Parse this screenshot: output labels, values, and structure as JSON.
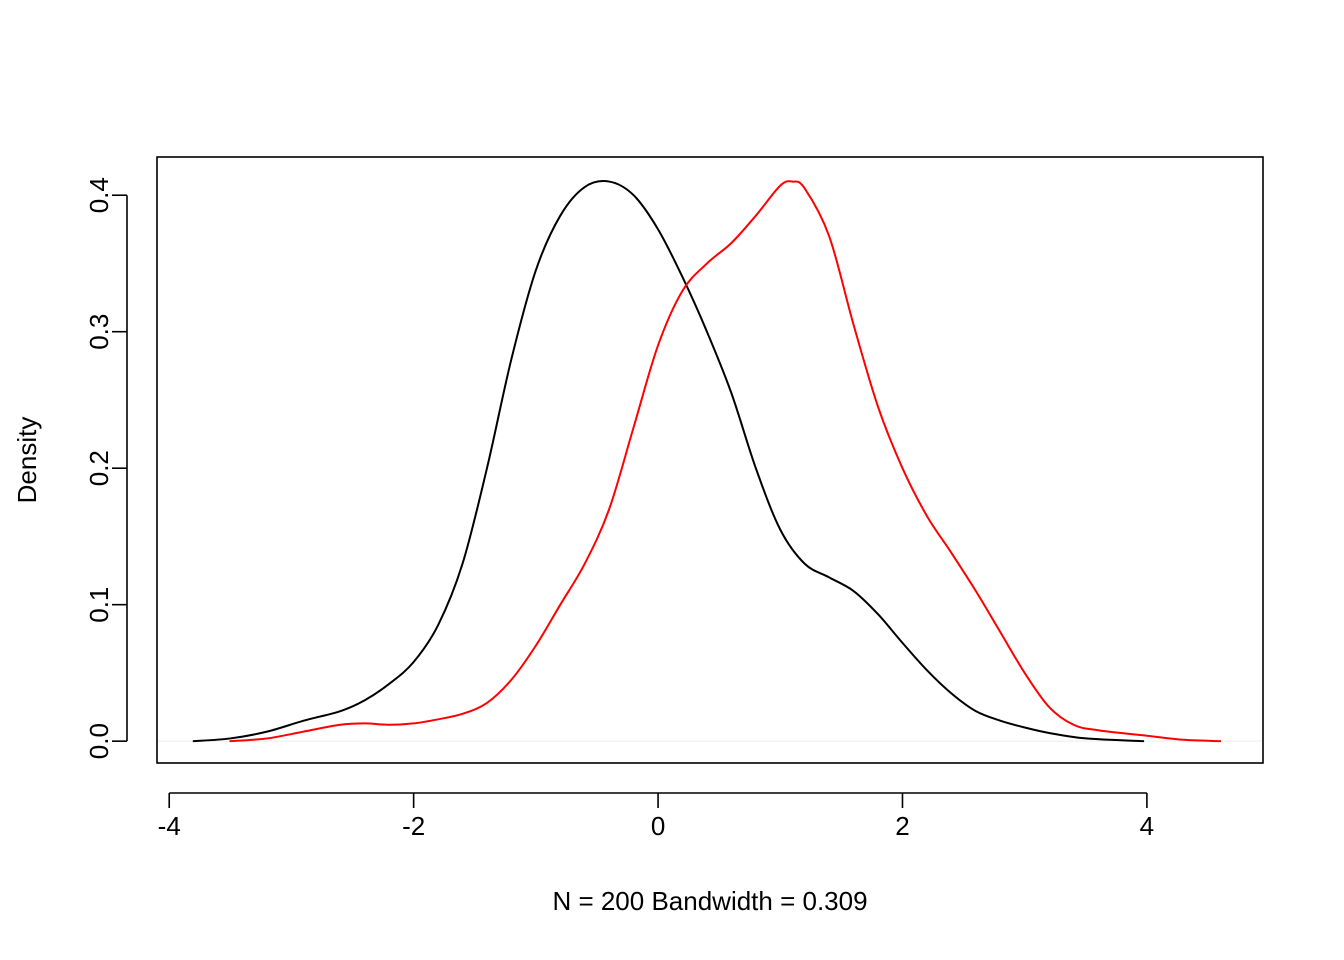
{
  "chart_data": {
    "type": "line",
    "title": "",
    "xlabel": "N = 200   Bandwidth = 0.309",
    "ylabel": "Density",
    "xlim": [
      -4.1,
      4.95
    ],
    "ylim": [
      -0.016,
      0.428
    ],
    "x_ticks": [
      -4,
      -2,
      0,
      2,
      4
    ],
    "x_tick_labels": [
      "-4",
      "-2",
      "0",
      "2",
      "4"
    ],
    "y_ticks": [
      0.0,
      0.1,
      0.2,
      0.3,
      0.4
    ],
    "y_tick_labels": [
      "0.0",
      "0.1",
      "0.2",
      "0.3",
      "0.4"
    ],
    "grid": false,
    "zero_line": true,
    "series": [
      {
        "color": "#000000",
        "points": [
          [
            -3.8,
            0.0
          ],
          [
            -3.5,
            0.002
          ],
          [
            -3.2,
            0.007
          ],
          [
            -2.9,
            0.015
          ],
          [
            -2.6,
            0.022
          ],
          [
            -2.4,
            0.03
          ],
          [
            -2.2,
            0.042
          ],
          [
            -2.0,
            0.058
          ],
          [
            -1.8,
            0.085
          ],
          [
            -1.6,
            0.13
          ],
          [
            -1.4,
            0.2
          ],
          [
            -1.2,
            0.28
          ],
          [
            -1.0,
            0.345
          ],
          [
            -0.8,
            0.385
          ],
          [
            -0.6,
            0.406
          ],
          [
            -0.4,
            0.41
          ],
          [
            -0.2,
            0.4
          ],
          [
            0.0,
            0.375
          ],
          [
            0.2,
            0.34
          ],
          [
            0.4,
            0.3
          ],
          [
            0.6,
            0.255
          ],
          [
            0.8,
            0.2
          ],
          [
            1.0,
            0.155
          ],
          [
            1.2,
            0.13
          ],
          [
            1.4,
            0.12
          ],
          [
            1.6,
            0.11
          ],
          [
            1.8,
            0.093
          ],
          [
            2.0,
            0.072
          ],
          [
            2.2,
            0.052
          ],
          [
            2.4,
            0.035
          ],
          [
            2.6,
            0.022
          ],
          [
            2.8,
            0.015
          ],
          [
            3.0,
            0.01
          ],
          [
            3.2,
            0.006
          ],
          [
            3.5,
            0.002
          ],
          [
            3.97,
            0.0
          ]
        ]
      },
      {
        "color": "#ff0000",
        "points": [
          [
            -3.5,
            0.0
          ],
          [
            -3.2,
            0.002
          ],
          [
            -2.9,
            0.007
          ],
          [
            -2.6,
            0.012
          ],
          [
            -2.4,
            0.013
          ],
          [
            -2.2,
            0.012
          ],
          [
            -2.0,
            0.013
          ],
          [
            -1.8,
            0.016
          ],
          [
            -1.6,
            0.02
          ],
          [
            -1.4,
            0.028
          ],
          [
            -1.2,
            0.045
          ],
          [
            -1.0,
            0.07
          ],
          [
            -0.8,
            0.1
          ],
          [
            -0.6,
            0.13
          ],
          [
            -0.4,
            0.17
          ],
          [
            -0.2,
            0.23
          ],
          [
            0.0,
            0.29
          ],
          [
            0.2,
            0.33
          ],
          [
            0.4,
            0.35
          ],
          [
            0.6,
            0.365
          ],
          [
            0.8,
            0.385
          ],
          [
            1.0,
            0.407
          ],
          [
            1.1,
            0.41
          ],
          [
            1.2,
            0.405
          ],
          [
            1.4,
            0.37
          ],
          [
            1.6,
            0.305
          ],
          [
            1.8,
            0.245
          ],
          [
            2.0,
            0.2
          ],
          [
            2.2,
            0.165
          ],
          [
            2.4,
            0.138
          ],
          [
            2.6,
            0.11
          ],
          [
            2.8,
            0.08
          ],
          [
            3.0,
            0.05
          ],
          [
            3.2,
            0.025
          ],
          [
            3.4,
            0.012
          ],
          [
            3.6,
            0.008
          ],
          [
            4.0,
            0.004
          ],
          [
            4.3,
            0.001
          ],
          [
            4.6,
            0.0
          ]
        ]
      }
    ]
  }
}
